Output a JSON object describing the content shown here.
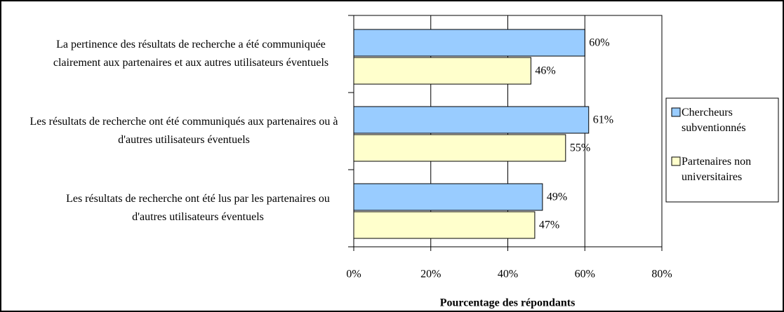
{
  "chart_data": {
    "type": "bar",
    "orientation": "horizontal",
    "categories": [
      "La pertinence des résultats de recherche a été communiquée clairement aux partenaires et aux autres utilisateurs éventuels",
      "Les résultats de recherche ont été communiqués aux partenaires ou à d'autres utilisateurs éventuels",
      "Les résultats de recherche ont été lus par les partenaires ou d'autres utilisateurs éventuels"
    ],
    "series": [
      {
        "name": "Chercheurs subventionnés",
        "color": "#99ccff",
        "values": [
          60,
          61,
          49
        ],
        "value_labels": [
          "60%",
          "61%",
          "49%"
        ]
      },
      {
        "name": "Partenaires non universitaires",
        "color": "#ffffcc",
        "values": [
          46,
          55,
          47
        ],
        "value_labels": [
          "46%",
          "55%",
          "47%"
        ]
      }
    ],
    "xlabel": "Pourcentage des répondants",
    "xlim": [
      0,
      80
    ],
    "xticks": [
      {
        "value": 0,
        "label": "0%"
      },
      {
        "value": 20,
        "label": "20%"
      },
      {
        "value": 40,
        "label": "40%"
      },
      {
        "value": 60,
        "label": "60%"
      },
      {
        "value": 80,
        "label": "80%"
      }
    ],
    "grid": true,
    "legend": "right"
  }
}
